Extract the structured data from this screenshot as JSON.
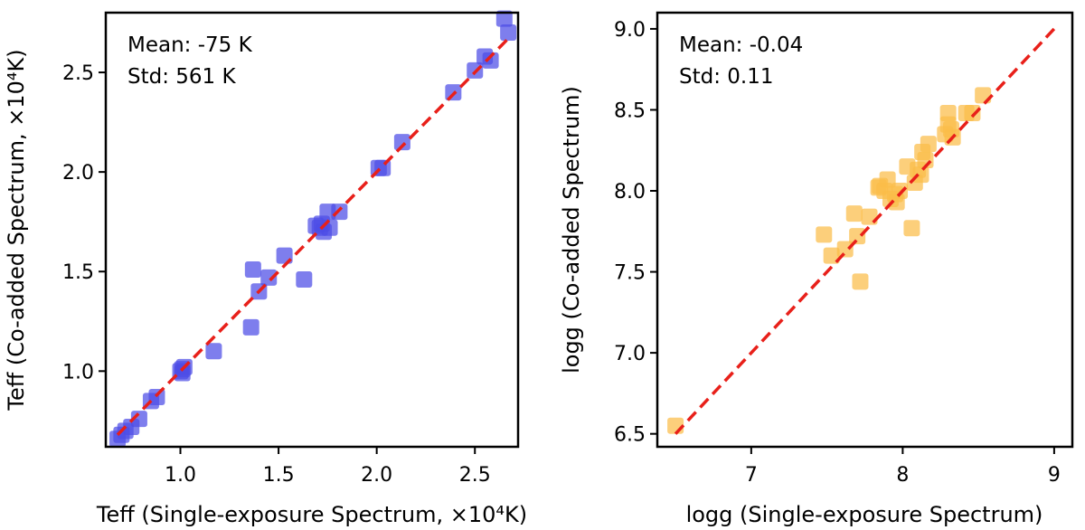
{
  "chart_data": [
    {
      "type": "scatter",
      "panel": "left",
      "xlabel": "Teff (Single-exposure Spectrum, ×10⁴K)",
      "ylabel": "Teff (Co-added Spectrum, ×10⁴K)",
      "xlim": [
        0.62,
        2.72
      ],
      "ylim": [
        0.62,
        2.8
      ],
      "xticks": [
        1.0,
        1.5,
        2.0,
        2.5
      ],
      "yticks": [
        1.0,
        1.5,
        2.0,
        2.5
      ],
      "xtick_labels": [
        "1.0",
        "1.5",
        "2.0",
        "2.5"
      ],
      "ytick_labels": [
        "1.0",
        "1.5",
        "2.0",
        "2.5"
      ],
      "annotations": [
        "Mean: -75 K",
        "Std: 561 K"
      ],
      "marker_color": "#4c4ce6",
      "reference_line": {
        "x": [
          0.68,
          2.68
        ],
        "y": [
          0.68,
          2.68
        ],
        "color": "#e8201a",
        "style": "dashed"
      },
      "series": [
        {
          "name": "Teff",
          "points": [
            [
              0.68,
              0.66
            ],
            [
              0.7,
              0.68
            ],
            [
              0.72,
              0.7
            ],
            [
              0.75,
              0.72
            ],
            [
              0.79,
              0.76
            ],
            [
              0.85,
              0.85
            ],
            [
              0.88,
              0.87
            ],
            [
              1.0,
              1.0
            ],
            [
              1.01,
              1.01
            ],
            [
              1.02,
              1.02
            ],
            [
              1.01,
              0.99
            ],
            [
              1.17,
              1.1
            ],
            [
              1.36,
              1.22
            ],
            [
              1.37,
              1.51
            ],
            [
              1.4,
              1.4
            ],
            [
              1.45,
              1.47
            ],
            [
              1.53,
              1.58
            ],
            [
              1.63,
              1.46
            ],
            [
              1.69,
              1.73
            ],
            [
              1.71,
              1.72
            ],
            [
              1.72,
              1.74
            ],
            [
              1.73,
              1.7
            ],
            [
              1.75,
              1.8
            ],
            [
              1.76,
              1.72
            ],
            [
              1.81,
              1.8
            ],
            [
              2.01,
              2.02
            ],
            [
              2.03,
              2.02
            ],
            [
              2.13,
              2.15
            ],
            [
              2.39,
              2.4
            ],
            [
              2.5,
              2.51
            ],
            [
              2.55,
              2.58
            ],
            [
              2.58,
              2.56
            ],
            [
              2.65,
              2.77
            ],
            [
              2.67,
              2.7
            ]
          ]
        }
      ]
    },
    {
      "type": "scatter",
      "panel": "right",
      "xlabel": "logg (Single-exposure Spectrum)",
      "ylabel": "logg (Co-added Spectrum)",
      "xlim": [
        6.38,
        9.12
      ],
      "ylim": [
        6.42,
        9.1
      ],
      "xticks": [
        7,
        8,
        9
      ],
      "yticks": [
        6.5,
        7.0,
        7.5,
        8.0,
        8.5,
        9.0
      ],
      "xtick_labels": [
        "7",
        "8",
        "9"
      ],
      "ytick_labels": [
        "6.5",
        "7.0",
        "7.5",
        "8.0",
        "8.5",
        "9.0"
      ],
      "annotations": [
        "Mean: -0.04",
        "Std: 0.11"
      ],
      "marker_color": "#fbbd48",
      "reference_line": {
        "x": [
          6.5,
          9.0
        ],
        "y": [
          6.5,
          9.0
        ],
        "color": "#e8201a",
        "style": "dashed"
      },
      "series": [
        {
          "name": "logg",
          "points": [
            [
              6.5,
              6.55
            ],
            [
              7.48,
              7.73
            ],
            [
              7.53,
              7.6
            ],
            [
              7.62,
              7.64
            ],
            [
              7.68,
              7.86
            ],
            [
              7.7,
              7.72
            ],
            [
              7.72,
              7.44
            ],
            [
              7.78,
              7.84
            ],
            [
              7.84,
              8.02
            ],
            [
              7.85,
              8.03
            ],
            [
              7.88,
              8.0
            ],
            [
              7.9,
              8.07
            ],
            [
              7.92,
              7.95
            ],
            [
              7.95,
              7.98
            ],
            [
              7.96,
              7.93
            ],
            [
              7.98,
              8.0
            ],
            [
              8.03,
              8.15
            ],
            [
              8.06,
              7.77
            ],
            [
              8.08,
              8.05
            ],
            [
              8.1,
              8.13
            ],
            [
              8.12,
              8.1
            ],
            [
              8.13,
              8.24
            ],
            [
              8.15,
              8.19
            ],
            [
              8.17,
              8.29
            ],
            [
              8.28,
              8.35
            ],
            [
              8.3,
              8.41
            ],
            [
              8.3,
              8.48
            ],
            [
              8.32,
              8.38
            ],
            [
              8.33,
              8.33
            ],
            [
              8.42,
              8.48
            ],
            [
              8.46,
              8.48
            ],
            [
              8.53,
              8.59
            ]
          ]
        }
      ]
    }
  ]
}
